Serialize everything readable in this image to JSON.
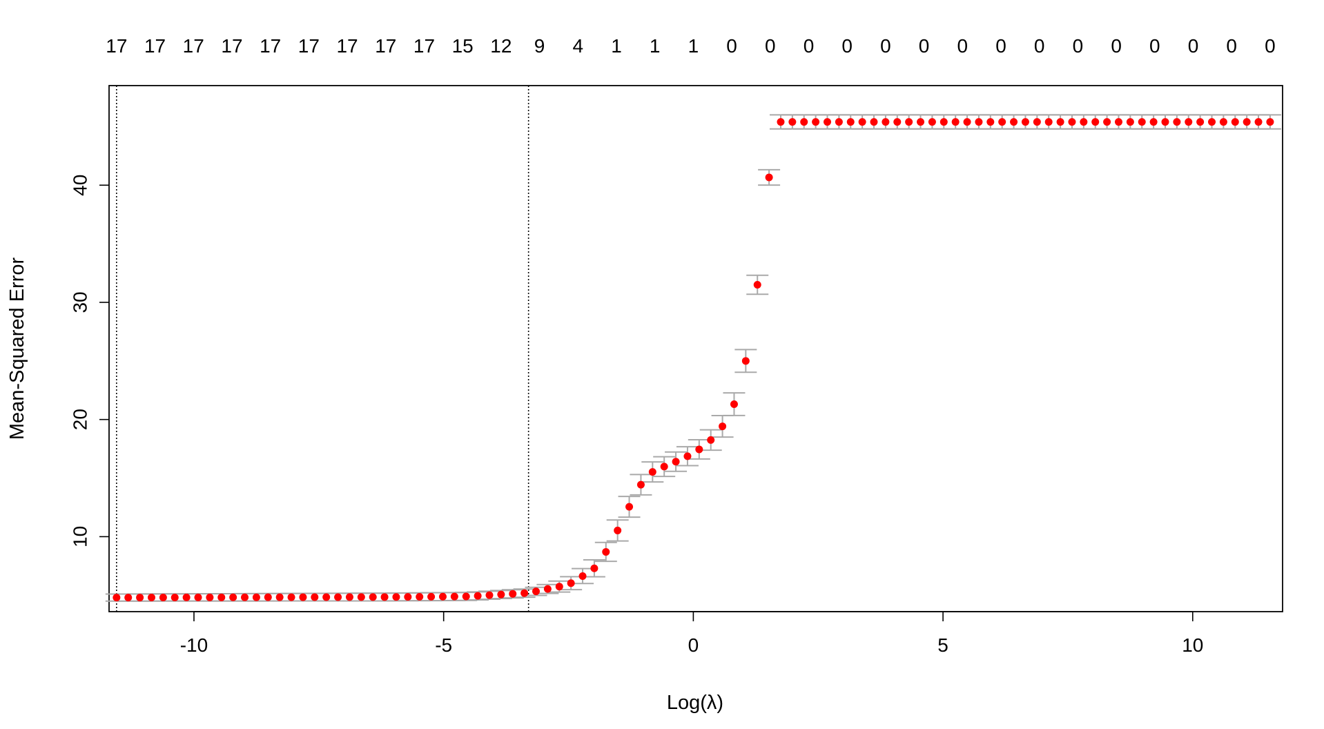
{
  "chart_data": {
    "type": "scatter",
    "xlabel": "Log(λ)",
    "ylabel": "Mean-Squared Error",
    "xlim": [
      -11.7,
      11.8
    ],
    "ylim": [
      3.6,
      48.5
    ],
    "x_ticks": [
      -10,
      -5,
      0,
      5,
      10
    ],
    "x_tick_labels": [
      "-10",
      "-5",
      "0",
      "5",
      "10"
    ],
    "y_ticks": [
      10,
      20,
      30,
      40
    ],
    "y_tick_labels": [
      "10",
      "20",
      "30",
      "40"
    ],
    "top_axis_labels": [
      "17",
      "17",
      "17",
      "17",
      "17",
      "17",
      "17",
      "17",
      "17",
      "15",
      "12",
      "9",
      "4",
      "1",
      "1",
      "1",
      "0",
      "0",
      "0",
      "0",
      "0",
      "0",
      "0",
      "0",
      "0",
      "0",
      "0",
      "0",
      "0",
      "0",
      "0"
    ],
    "reference_lines_x": [
      -11.55,
      -3.3
    ],
    "x_range": [
      -11.55,
      11.55
    ],
    "n_points": 100,
    "curve_points": [
      {
        "x": -11.55,
        "y": 4.8
      },
      {
        "x": -6.0,
        "y": 4.85
      },
      {
        "x": -4.5,
        "y": 4.9
      },
      {
        "x": -3.3,
        "y": 5.2
      },
      {
        "x": -2.5,
        "y": 5.9
      },
      {
        "x": -2.0,
        "y": 7.2
      },
      {
        "x": -1.7,
        "y": 9.0
      },
      {
        "x": -1.4,
        "y": 11.5
      },
      {
        "x": -1.1,
        "y": 14.2
      },
      {
        "x": -0.8,
        "y": 15.6
      },
      {
        "x": -0.4,
        "y": 16.3
      },
      {
        "x": 0.0,
        "y": 17.1
      },
      {
        "x": 0.3,
        "y": 18.0
      },
      {
        "x": 0.6,
        "y": 19.5
      },
      {
        "x": 0.9,
        "y": 22.0
      },
      {
        "x": 1.1,
        "y": 26.0
      },
      {
        "x": 1.3,
        "y": 32.0
      },
      {
        "x": 1.45,
        "y": 38.0
      },
      {
        "x": 1.55,
        "y": 42.0
      },
      {
        "x": 1.62,
        "y": 44.5
      },
      {
        "x": 1.68,
        "y": 45.4
      },
      {
        "x": 11.55,
        "y": 45.4
      }
    ],
    "error_bar_halfwidth": [
      {
        "x": -11.55,
        "e": 0.3
      },
      {
        "x": -3.0,
        "e": 0.35
      },
      {
        "x": -1.5,
        "e": 0.9
      },
      {
        "x": 0.0,
        "e": 0.8
      },
      {
        "x": 1.0,
        "e": 1.0
      },
      {
        "x": 1.6,
        "e": 0.6
      },
      {
        "x": 11.55,
        "e": 0.6
      }
    ],
    "point_color": "#ff0000",
    "errorbar_color": "#a9a9a9",
    "grid": false,
    "legend": "none"
  }
}
